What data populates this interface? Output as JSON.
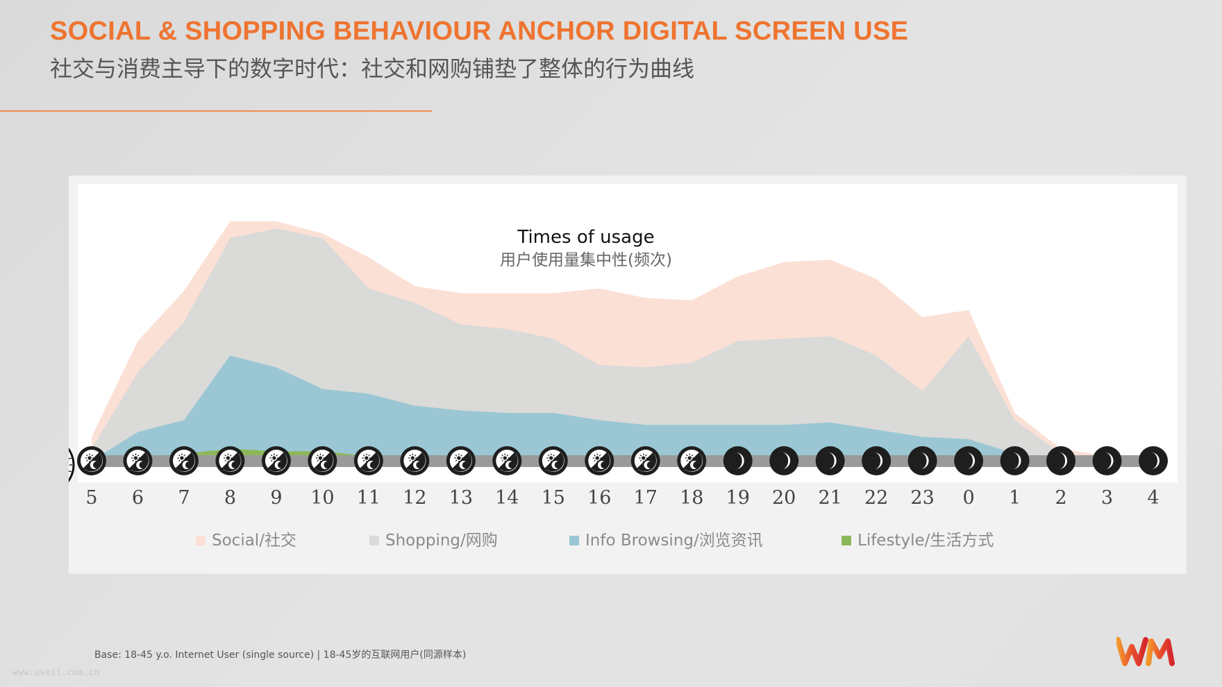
{
  "header": {
    "title": "SOCIAL & SHOPPING BEHAVIOUR ANCHOR DIGITAL SCREEN USE",
    "subtitle": "社交与消费主导下的数字时代：社交和网购铺垫了整体的行为曲线"
  },
  "footer": {
    "base_note": "Base: 18-45 y.o. Internet User (single source) | 18-45岁的互联网用户(同源样本)",
    "watermark": "www.useit.com.cn"
  },
  "colors": {
    "accent": "#ee7430",
    "social": "#fbe0d6",
    "shopping": "#dadad8",
    "info_browsing": "#9ac7d3",
    "lifestyle": "#8db85a",
    "timeline": "#9a9a9a",
    "icon_dark": "#1e1e1e"
  },
  "icons": {
    "clock": "clock-icon",
    "day": "sun-moon-icon",
    "night": "moon-icon",
    "logo": "wm-logo"
  },
  "chart_data": {
    "type": "area",
    "stacked": false,
    "title": "Times of usage",
    "subtitle": "用户使用量集中性(频次)",
    "xlabel": "",
    "ylabel": "",
    "ylim": [
      0,
      100
    ],
    "x": [
      "5",
      "6",
      "7",
      "8",
      "9",
      "10",
      "11",
      "12",
      "13",
      "14",
      "15",
      "16",
      "17",
      "18",
      "19",
      "20",
      "21",
      "22",
      "23",
      "0",
      "1",
      "2",
      "3",
      "4"
    ],
    "series": [
      {
        "name": "Social/社交",
        "color": "#fbe0d6",
        "values": [
          10,
          50,
          71,
          100,
          100,
          95,
          85,
          73,
          70,
          70,
          70,
          72,
          68,
          67,
          77,
          83,
          84,
          76,
          60,
          63,
          20,
          5,
          2,
          2
        ]
      },
      {
        "name": "Shopping/网购",
        "color": "#dadad8",
        "values": [
          5,
          37,
          58,
          93,
          97,
          93,
          72,
          66,
          57,
          55,
          51,
          40,
          39,
          41,
          50,
          51,
          52,
          44,
          29,
          52,
          17,
          3,
          1,
          1
        ]
      },
      {
        "name": "Info Browsing/浏览资讯",
        "color": "#9ac7d3",
        "values": [
          0,
          12,
          17,
          44,
          39,
          30,
          28,
          23,
          21,
          20,
          20,
          17,
          15,
          15,
          15,
          15,
          16,
          13,
          10,
          9,
          3,
          0,
          0,
          0
        ]
      },
      {
        "name": "Lifestyle/生活方式",
        "color": "#8db85a",
        "values": [
          0,
          0,
          3,
          5,
          4,
          4,
          2,
          0,
          0,
          0,
          0,
          0,
          0,
          0,
          0,
          0,
          0,
          0,
          0,
          0,
          0,
          0,
          0,
          0
        ]
      }
    ],
    "period": [
      "day",
      "day",
      "day",
      "day",
      "day",
      "day",
      "day",
      "day",
      "day",
      "day",
      "day",
      "day",
      "day",
      "day",
      "night",
      "night",
      "night",
      "night",
      "night",
      "night",
      "night",
      "night",
      "night",
      "night"
    ],
    "grid": false,
    "legend_position": "bottom"
  }
}
